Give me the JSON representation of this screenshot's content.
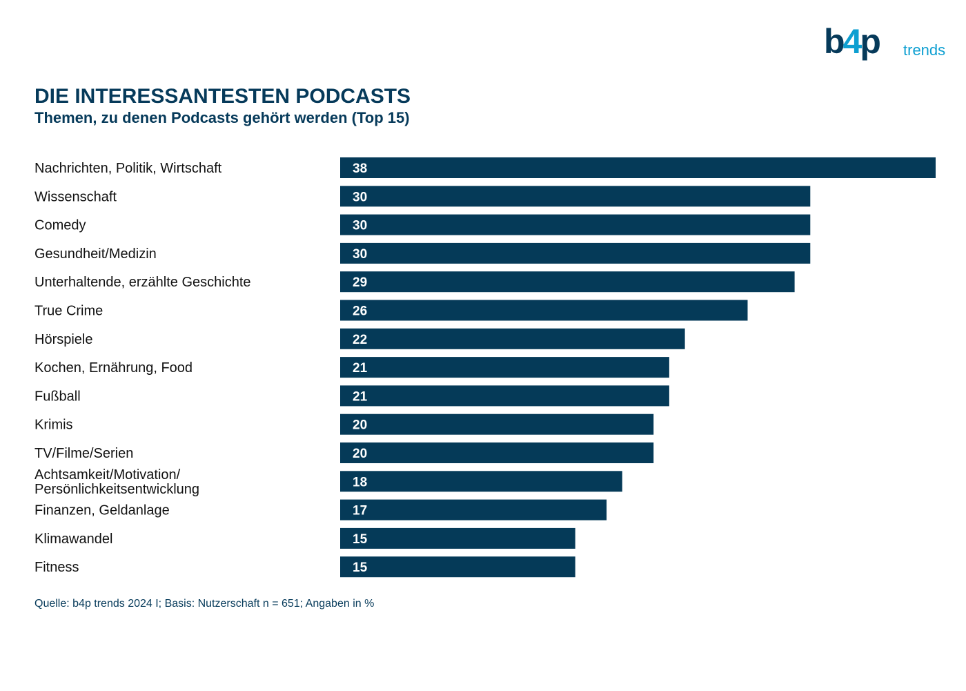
{
  "logo": {
    "main_prefix": "b",
    "main_four": "4",
    "main_suffix": "p",
    "sub": "trends"
  },
  "header": {
    "title": "DIE INTERESSANTESTEN PODCASTS",
    "subtitle": "Themen, zu denen Podcasts gehört werden (Top 15)"
  },
  "footnote": "Quelle: b4p trends 2024 I; Basis: Nutzerschaft n = 651; Angaben in %",
  "colors": {
    "bar": "#053a58",
    "value_text": "#ffffff",
    "accent": "#0d9fd1"
  },
  "chart_data": {
    "type": "bar",
    "orientation": "horizontal",
    "title": "DIE INTERESSANTESTEN PODCASTS",
    "subtitle": "Themen, zu denen Podcasts gehört werden (Top 15)",
    "categories": [
      "Nachrichten, Politik, Wirtschaft",
      "Wissenschaft",
      "Comedy",
      "Gesundheit/Medizin",
      "Unterhaltende, erzählte Geschichte",
      "True Crime",
      "Hörspiele",
      "Kochen, Ernährung, Food",
      "Fußball",
      "Krimis",
      "TV/Filme/Serien",
      "Achtsamkeit/Motivation/\nPersönlichkeitsentwicklung",
      "Finanzen, Geldanlage",
      "Klimawandel",
      "Fitness"
    ],
    "values": [
      38,
      30,
      30,
      30,
      29,
      26,
      22,
      21,
      21,
      20,
      20,
      18,
      17,
      15,
      15
    ],
    "unit": "%",
    "xlim": [
      0,
      38
    ],
    "grid": false,
    "legend": "none"
  }
}
